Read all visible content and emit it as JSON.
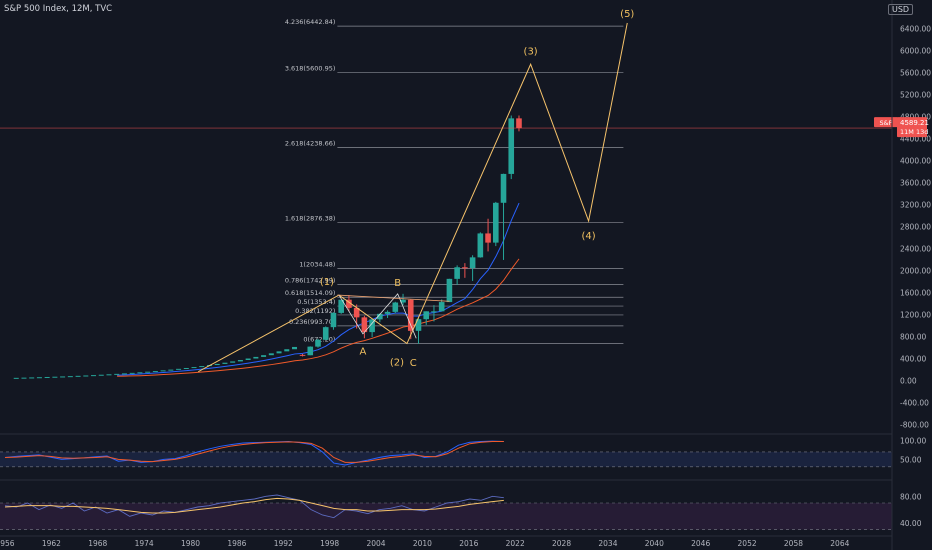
{
  "header": {
    "title": "S&P 500 Index, 12M, TVC",
    "currency": "USD"
  },
  "colors": {
    "up": "#26a69a",
    "down": "#ef5350",
    "wave": "#f6c36b",
    "fib": "#787b86",
    "ma_fast": "#2962ff",
    "ma_slow": "#f05a2a",
    "rsi": "#7e57c2",
    "price_line": "#ef5350"
  },
  "chart_data": {
    "type": "candlestick",
    "main": {
      "y_ticks": [
        "6400.00",
        "6000.00",
        "5600.00",
        "5200.00",
        "4800.00",
        "4400.00",
        "4000.00",
        "3600.00",
        "3200.00",
        "2800.00",
        "2400.00",
        "2000.00",
        "1600.00",
        "1200.00",
        "800.00",
        "400.00",
        "0.00",
        "-400.00",
        "-800.00"
      ],
      "y_ticks_values": [
        6400,
        6000,
        5600,
        5200,
        4800,
        4400,
        4000,
        3600,
        3200,
        2800,
        2400,
        2000,
        1600,
        1200,
        800,
        400,
        0,
        -400,
        -800
      ],
      "ylim": [
        -900,
        6700
      ],
      "last_price_label": "S&P",
      "last_price": "4589.21",
      "countdown": "11M 13d",
      "candles": [
        {
          "year": 1994,
          "o": 466,
          "h": 482,
          "l": 438,
          "c": 459
        },
        {
          "year": 1995,
          "o": 459,
          "h": 621,
          "l": 459,
          "c": 616
        },
        {
          "year": 1996,
          "o": 616,
          "h": 757,
          "l": 598,
          "c": 740
        },
        {
          "year": 1997,
          "o": 740,
          "h": 983,
          "l": 737,
          "c": 970
        },
        {
          "year": 1998,
          "o": 970,
          "h": 1241,
          "l": 923,
          "c": 1229
        },
        {
          "year": 1999,
          "o": 1229,
          "h": 1469,
          "l": 1212,
          "c": 1469
        },
        {
          "year": 2000,
          "o": 1469,
          "h": 1553,
          "l": 1254,
          "c": 1320
        },
        {
          "year": 2001,
          "o": 1320,
          "h": 1383,
          "l": 944,
          "c": 1148
        },
        {
          "year": 2002,
          "o": 1148,
          "h": 1176,
          "l": 768,
          "c": 880
        },
        {
          "year": 2003,
          "o": 880,
          "h": 1112,
          "l": 788,
          "c": 1112
        },
        {
          "year": 2004,
          "o": 1112,
          "h": 1217,
          "l": 1060,
          "c": 1212
        },
        {
          "year": 2005,
          "o": 1212,
          "h": 1275,
          "l": 1137,
          "c": 1248
        },
        {
          "year": 2006,
          "o": 1248,
          "h": 1431,
          "l": 1219,
          "c": 1418
        },
        {
          "year": 2007,
          "o": 1418,
          "h": 1576,
          "l": 1374,
          "c": 1468
        },
        {
          "year": 2008,
          "o": 1468,
          "h": 1471,
          "l": 752,
          "c": 903
        },
        {
          "year": 2009,
          "o": 903,
          "h": 1130,
          "l": 667,
          "c": 1115
        },
        {
          "year": 2010,
          "o": 1115,
          "h": 1259,
          "l": 1011,
          "c": 1258
        },
        {
          "year": 2011,
          "o": 1258,
          "h": 1370,
          "l": 1074,
          "c": 1258
        },
        {
          "year": 2012,
          "o": 1258,
          "h": 1474,
          "l": 1258,
          "c": 1426
        },
        {
          "year": 2013,
          "o": 1426,
          "h": 1849,
          "l": 1426,
          "c": 1848
        },
        {
          "year": 2014,
          "o": 1848,
          "h": 2093,
          "l": 1737,
          "c": 2059
        },
        {
          "year": 2015,
          "o": 2059,
          "h": 2134,
          "l": 1867,
          "c": 2044
        },
        {
          "year": 2016,
          "o": 2044,
          "h": 2277,
          "l": 1810,
          "c": 2239
        },
        {
          "year": 2017,
          "o": 2239,
          "h": 2694,
          "l": 2233,
          "c": 2674
        },
        {
          "year": 2018,
          "o": 2674,
          "h": 2941,
          "l": 2347,
          "c": 2507
        },
        {
          "year": 2019,
          "o": 2507,
          "h": 3247,
          "l": 2444,
          "c": 3231
        },
        {
          "year": 2020,
          "o": 3231,
          "h": 3760,
          "l": 2192,
          "c": 3756
        },
        {
          "year": 2021,
          "o": 3756,
          "h": 4818,
          "l": 3662,
          "c": 4766
        },
        {
          "year": 2022,
          "o": 4766,
          "h": 4818,
          "l": 4530,
          "c": 4589
        }
      ],
      "fib_levels": [
        {
          "label": "4.236(6442.84)",
          "value": 6442.84
        },
        {
          "label": "3.618(5600.95)",
          "value": 5600.95
        },
        {
          "label": "2.618(4238.66)",
          "value": 4238.66
        },
        {
          "label": "1.618(2876.38)",
          "value": 2876.38
        },
        {
          "label": "1(2034.48)",
          "value": 2034.48
        },
        {
          "label": "0.786(1742.99)",
          "value": 1742.99
        },
        {
          "label": "0.618(1514.09)",
          "value": 1514.09
        },
        {
          "label": "0.5(1353.4)",
          "value": 1353.4
        },
        {
          "label": "0.382(1192)",
          "value": 1192
        },
        {
          "label": "0.236(993.70)",
          "value": 993.7
        },
        {
          "label": "0(672.20)",
          "value": 672.2
        }
      ],
      "waves": [
        {
          "label": "(1)",
          "year": 1999.2,
          "value": 1553
        },
        {
          "label": "A",
          "year": 2002.3,
          "value": 768
        },
        {
          "label": "B",
          "year": 2006.8,
          "value": 1576
        },
        {
          "label": "(2)",
          "year": 2008.0,
          "value": 672
        },
        {
          "label": "C",
          "year": 2009.2,
          "value": 667
        },
        {
          "label": "(3)",
          "year": 2024.0,
          "value": 5750
        },
        {
          "label": "(4)",
          "year": 2031.5,
          "value": 2900
        },
        {
          "label": "(5)",
          "year": 2036.5,
          "value": 6500
        }
      ]
    },
    "rsi": {
      "y_ticks": [
        "100.00",
        "50.00"
      ],
      "y_ticks_values": [
        100,
        50
      ],
      "ylim": [
        0,
        110
      ]
    },
    "stoch": {
      "y_ticks": [
        "80.00",
        "40.00"
      ],
      "y_ticks_values": [
        80,
        40
      ],
      "ylim": [
        25,
        100
      ]
    },
    "x_ticks": [
      "1956",
      "1962",
      "1968",
      "1974",
      "1980",
      "1986",
      "1992",
      "1998",
      "2004",
      "2010",
      "2016",
      "2022",
      "2028",
      "2034",
      "2040",
      "2046",
      "2052",
      "2058",
      "2064"
    ],
    "x_ticks_values": [
      1956,
      1962,
      1968,
      1974,
      1980,
      1986,
      1992,
      1998,
      2004,
      2010,
      2016,
      2022,
      2028,
      2034,
      2040,
      2046,
      2052,
      2058,
      2064
    ]
  }
}
